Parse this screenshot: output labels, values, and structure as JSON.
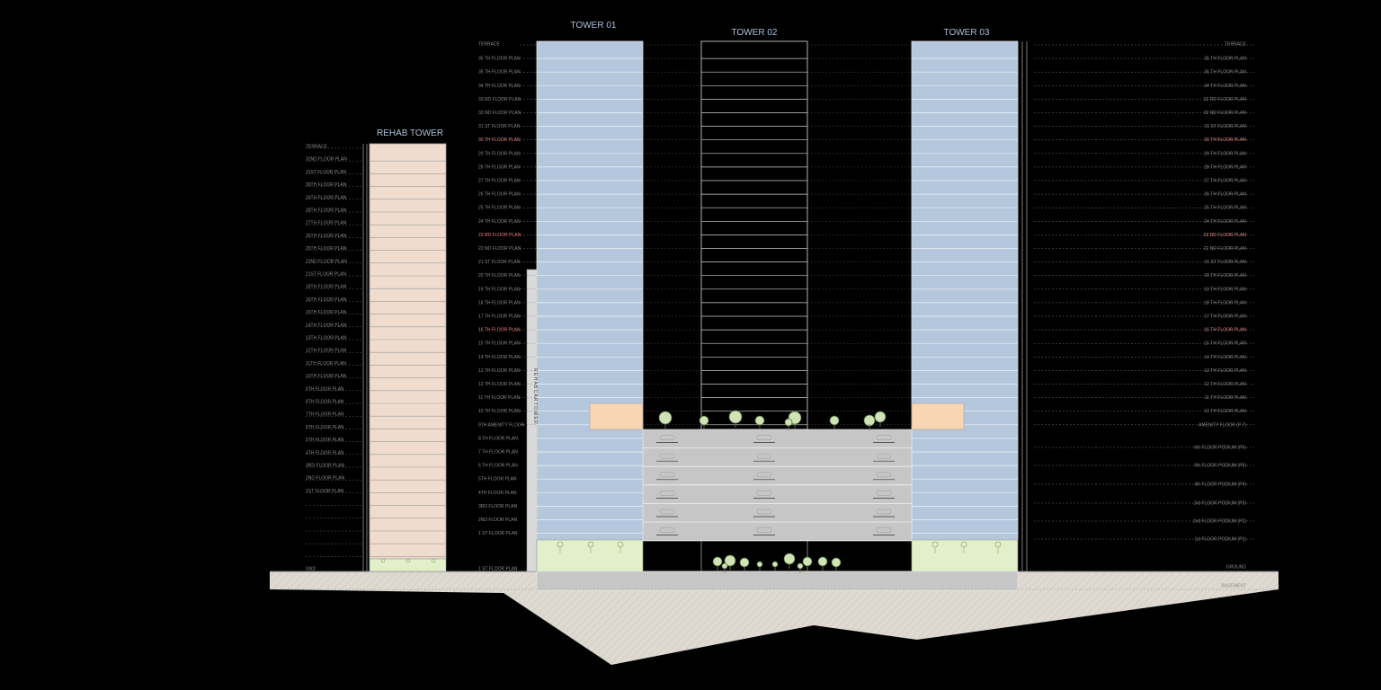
{
  "towers": {
    "rehab": "REHAB TOWER",
    "t1": "TOWER 01",
    "t2": "TOWER 02",
    "t3": "TOWER 03"
  },
  "rehab_vertical_label": "R E H A B   C A R   T O W E R",
  "rehab_levels": [
    "TERRACE",
    "32ND FLOOR PLAN",
    "31ST FLOOR PLAN",
    "30TH FLOOR PLAN",
    "29TH FLOOR PLAN",
    "28TH FLOOR PLAN",
    "27TH FLOOR PLAN",
    "26TH FLOOR PLAN",
    "25TH FLOOR PLAN",
    "22ND FLOOR PLAN",
    "21ST FLOOR PLAN",
    "18TH FLOOR PLAN",
    "16TH FLOOR PLAN",
    "15TH FLOOR PLAN",
    "14TH FLOOR PLAN",
    "13TH FLOOR PLAN",
    "12TH FLOOR PLAN",
    "11TH FLOOR PLAN",
    "10TH FLOOR PLAN",
    "9TH FLOOR PLAN",
    "8TH FLOOR PLAN",
    "7TH FLOOR PLAN",
    "6TH FLOOR PLAN",
    "5TH FLOOR PLAN",
    "4TH FLOOR PLAN",
    "3RD FLOOR PLAN",
    "2ND FLOOR PLAN",
    "1ST FLOOR PLAN",
    "GND"
  ],
  "left_levels": [
    "TERRACE",
    "35 TH FLOOR PLAN",
    "35 TH FLOOR PLAN",
    "34 TH FLOOR PLAN",
    "33 RD FLOOR PLAN",
    "32 ND FLOOR PLAN",
    "31 ST FLOOR PLAN",
    "30 TH FLOOR PLAN",
    "29 TH FLOOR PLAN",
    "28 TH FLOOR PLAN",
    "27 TH FLOOR PLAN",
    "26 TH FLOOR PLAN",
    "25 TH FLOOR PLAN",
    "24 TH FLOOR PLAN",
    "23 RD FLOOR PLAN",
    "22 ND FLOOR PLAN",
    "21 ST FLOOR PLAN",
    "20 TH FLOOR PLAN",
    "19 TH FLOOR PLAN",
    "18 TH FLOOR PLAN",
    "17 TH FLOOR PLAN",
    "16 TH FLOOR PLAN",
    "15 TH FLOOR PLAN",
    "14 TH FLOOR PLAN",
    "13 TH FLOOR PLAN",
    "12 TH FLOOR PLAN",
    "11 TH FLOOR PLAN",
    "10 TH FLOOR PLAN",
    "9TH AMENITY FLOOR",
    "8 TH FLOOR PLAN",
    "7 TH FLOOR PLAN",
    "6 TH FLOOR PLAN",
    "5TH FLOOR PLAN",
    "4TH FLOOR PLAN",
    "3RD FLOOR PLAN",
    "2ND FLOOR PLAN",
    "1 ST FLOOR PLAN",
    "1 ST FLOOR PLAN"
  ],
  "right_levels": [
    "TERRACE",
    "35 TH FLOOR PLAN",
    "35 TH FLOOR PLAN",
    "34 TH FLOOR PLAN",
    "33 RD FLOOR PLAN",
    "32 ND FLOOR PLAN",
    "31 ST FLOOR PLAN",
    "30 TH FLOOR PLAN",
    "29 TH FLOOR PLAN",
    "28 TH FLOOR PLAN",
    "27 TH FLOOR PLAN",
    "26 TH FLOOR PLAN",
    "25 TH FLOOR PLAN",
    "24 TH FLOOR PLAN",
    "23 RD FLOOR PLAN",
    "22 ND FLOOR PLAN",
    "21 ST FLOOR PLAN",
    "20 TH FLOOR PLAN",
    "19 TH FLOOR PLAN",
    "18 TH FLOOR PLAN",
    "17 TH FLOOR PLAN",
    "16 TH FLOOR PLAN",
    "15 TH FLOOR PLAN",
    "14 TH FLOOR PLAN",
    "13 TH FLOOR PLAN",
    "12 TH FLOOR PLAN",
    "11 TH FLOOR PLAN",
    "10 TH FLOOR PLAN",
    "AMENITY FLOOR (P 7)",
    "6th FLOOR PODIUM (P6)",
    "5th FLOOR PODIUM (P5)",
    "4th FLOOR PODIUM (P4)",
    "3rd FLOOR PODIUM (P3)",
    "2nd FLOOR PODIUM (P2)",
    "1st FLOOR PODIUM (P1)",
    "GROUND",
    "BASEMENT"
  ],
  "colors": {
    "background": "#000000",
    "tower_glass": "#b4c7dd",
    "rehab_facade": "#f0dccf",
    "amenity": "#f9d6b3",
    "landscape": "#e2efc9",
    "podium": "#c6c6c6",
    "ground": "#dedad2",
    "title": "#a9c0d9",
    "highlight": "#e88a8a"
  }
}
